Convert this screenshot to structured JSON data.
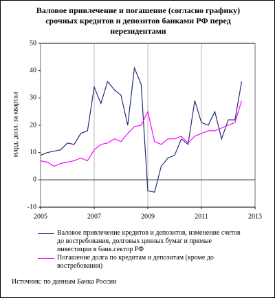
{
  "chart_data": {
    "type": "line",
    "title": "Валовое привлечение и погашение (согласно графику) срочных кредитов и депозитов  банками РФ перед нерезидентами",
    "y_label": "млрд. долл. за квартал",
    "source": "Источник: по данным Банка России",
    "x": [
      2005.0,
      2005.25,
      2005.5,
      2005.75,
      2006.0,
      2006.25,
      2006.5,
      2006.75,
      2007.0,
      2007.25,
      2007.5,
      2007.75,
      2008.0,
      2008.25,
      2008.5,
      2008.75,
      2009.0,
      2009.25,
      2009.5,
      2009.75,
      2010.0,
      2010.25,
      2010.5,
      2010.75,
      2011.0,
      2011.25,
      2011.5,
      2011.75,
      2012.0,
      2012.25,
      2012.5
    ],
    "series": [
      {
        "name": "Валовое привлечение кредитов и депозитов, изменение счетов до востребования, долговых ценных бумаг и прямые инвестиции в банк.сектор РФ",
        "color": "#1f2a7a",
        "values": [
          9,
          10,
          10.5,
          11,
          13.5,
          13,
          17,
          18,
          34,
          28,
          36,
          33,
          31,
          20,
          41,
          35,
          -4,
          -4.5,
          5,
          8,
          9,
          15,
          13,
          29,
          21,
          20,
          25,
          15,
          22,
          22,
          36
        ]
      },
      {
        "name": "Погашение долга по кредитам и депозитам (кроме до востребования)",
        "color": "#ff00ff",
        "values": [
          7,
          6.5,
          5,
          6,
          6.5,
          7,
          8,
          7,
          11,
          13,
          13.5,
          15,
          14,
          17,
          19.5,
          20,
          25,
          14,
          13,
          15,
          15,
          16,
          13.5,
          16,
          17,
          18,
          18,
          19,
          20,
          21,
          29
        ]
      }
    ],
    "xlim": [
      2005,
      2013
    ],
    "xticks": [
      2005,
      2007,
      2009,
      2011,
      2013
    ],
    "ylim": [
      -10,
      50
    ],
    "yticks": [
      -10,
      0,
      10,
      20,
      30,
      40,
      50
    ],
    "grid": true
  }
}
